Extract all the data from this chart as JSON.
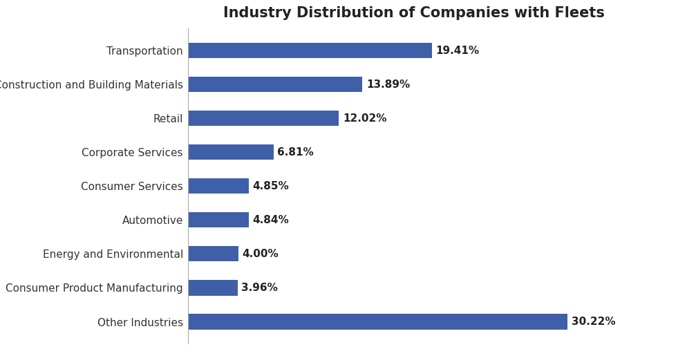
{
  "title": "Industry Distribution of Companies with Fleets",
  "categories": [
    "Other Industries",
    "Consumer Product Manufacturing",
    "Energy and Environmental",
    "Automotive",
    "Consumer Services",
    "Corporate Services",
    "Retail",
    "Construction and Building Materials",
    "Transportation"
  ],
  "values": [
    30.22,
    3.96,
    4.0,
    4.84,
    4.85,
    6.81,
    12.02,
    13.89,
    19.41
  ],
  "labels": [
    "30.22%",
    "3.96%",
    "4.00%",
    "4.84%",
    "4.85%",
    "6.81%",
    "12.02%",
    "13.89%",
    "19.41%"
  ],
  "bar_color": "#3f5fa8",
  "background_color": "#ffffff",
  "title_fontsize": 15,
  "label_fontsize": 11,
  "tick_fontsize": 11,
  "bar_height": 0.45,
  "xlim": [
    0,
    36
  ]
}
